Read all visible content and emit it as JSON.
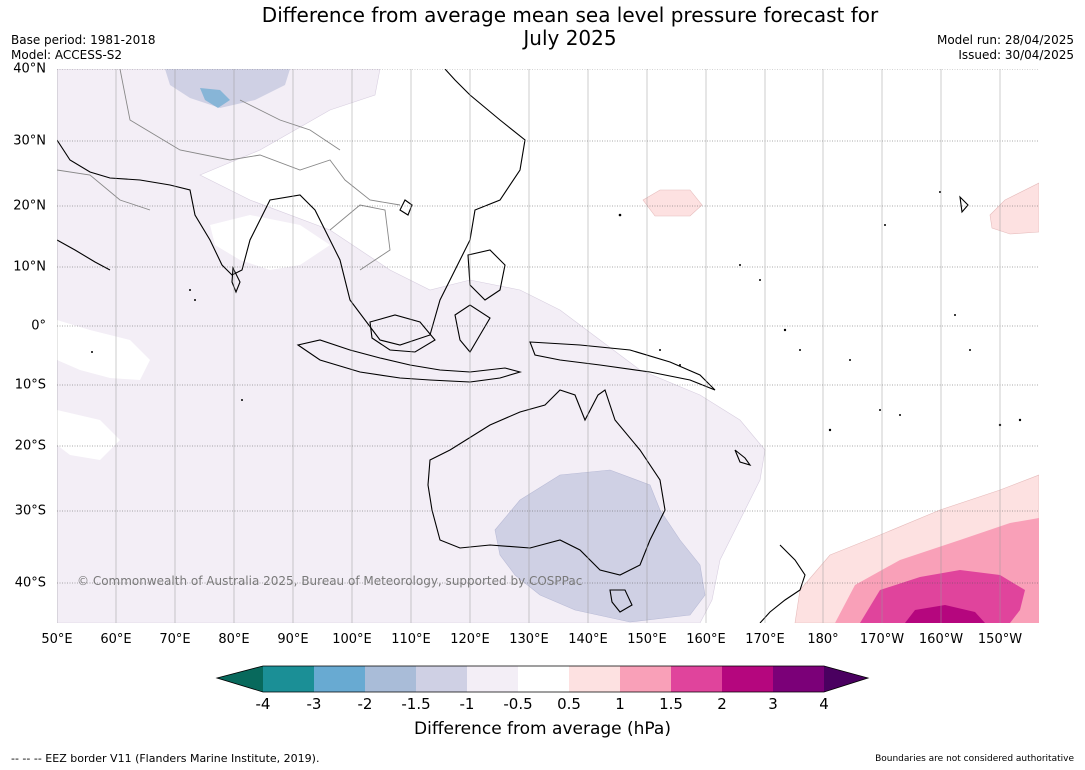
{
  "header": {
    "title_line1": "Difference from average mean sea level pressure forecast for",
    "title_line2": "July 2025",
    "base_period": "Base period: 1981-2018",
    "model": "Model: ACCESS-S2",
    "model_run": "Model run: 28/04/2025",
    "issued": "Issued: 30/04/2025"
  },
  "map": {
    "lat_labels": [
      "40°N",
      "30°N",
      "20°N",
      "10°N",
      "0°",
      "10°S",
      "20°S",
      "30°S",
      "40°S"
    ],
    "lon_labels": [
      "50°E",
      "60°E",
      "70°E",
      "80°E",
      "90°E",
      "100°E",
      "110°E",
      "120°E",
      "130°E",
      "140°E",
      "150°E",
      "160°E",
      "170°E",
      "180°",
      "170°W",
      "160°W",
      "150°W"
    ],
    "copyright": "© Commonwealth of Australia 2025, Bureau of Meteorology, supported by COSPPac",
    "colors": {
      "ocean": "#ffffff",
      "below_0_5": "#f3eef6",
      "below_1_5": "#cfd0e4",
      "below_2": "#a9bcd8",
      "below_3": "#68aad2",
      "above_0_5": "#fde1e1",
      "above_1": "#f9a0b8",
      "above_1_5": "#e0449c",
      "above_2": "#b5067e",
      "coast": "#000000",
      "border": "#888888"
    }
  },
  "colorbar": {
    "ticks": [
      "-4",
      "-3",
      "-2",
      "-1.5",
      "-1",
      "-0.5",
      "0.5",
      "1",
      "1.5",
      "2",
      "3",
      "4"
    ],
    "colors": [
      "#08695c",
      "#1b8f96",
      "#68aad2",
      "#a9bcd8",
      "#cfd0e4",
      "#f3eef6",
      "#ffffff",
      "#fde1e1",
      "#f9a0b8",
      "#e0449c",
      "#b5067e",
      "#7b0078",
      "#4a0060"
    ],
    "label": "Difference from average (hPa)"
  },
  "footer": {
    "eez": "--  --  -- EEZ border V11 (Flanders Marine Institute, 2019).",
    "boundaries": "Boundaries are not considered authoritative"
  }
}
